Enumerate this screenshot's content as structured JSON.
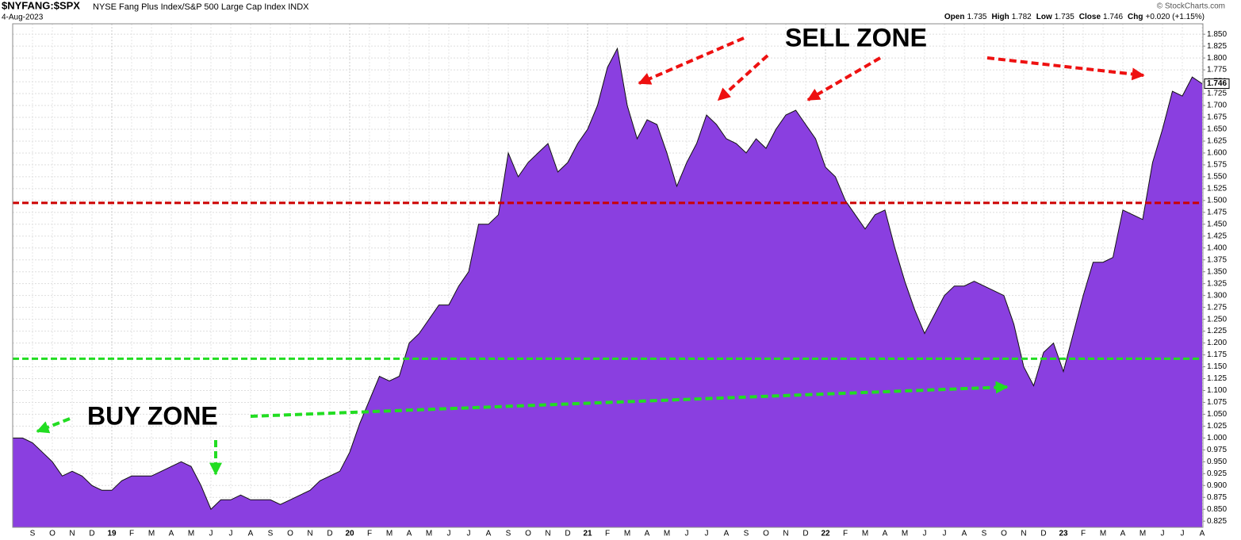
{
  "chart_data": {
    "type": "area",
    "title": "$NYFANG:$SPX",
    "subtitle": "NYSE Fang Plus Index/S&P 500 Large Cap Index  INDX",
    "date": "4-Aug-2023",
    "credit": "© StockCharts.com",
    "quote": [
      [
        "Open",
        "1.735"
      ],
      [
        "High",
        "1.782"
      ],
      [
        "Low",
        "1.735"
      ],
      [
        "Close",
        "1.746"
      ],
      [
        "Chg",
        "+0.020 (+1.15%)"
      ]
    ],
    "annotations": [
      {
        "text": "SELL ZONE",
        "color": "#ee0000"
      },
      {
        "text": "BUY ZONE",
        "color": "#22dd22"
      }
    ],
    "hlines": [
      {
        "value": 1.495,
        "color": "#cc0000"
      },
      {
        "value": 1.167,
        "color": "#22dd22"
      }
    ],
    "categories": [
      null,
      null,
      "S",
      null,
      "O",
      null,
      "N",
      null,
      "D",
      null,
      "19",
      null,
      "F",
      null,
      "M",
      null,
      "A",
      null,
      "M",
      null,
      "J",
      null,
      "J",
      null,
      "A",
      null,
      "S",
      null,
      "O",
      null,
      "N",
      null,
      "D",
      null,
      "20",
      null,
      "F",
      null,
      "M",
      null,
      "A",
      null,
      "M",
      null,
      "J",
      null,
      "J",
      null,
      "A",
      null,
      "S",
      null,
      "O",
      null,
      "N",
      null,
      "D",
      null,
      "21",
      null,
      "F",
      null,
      "M",
      null,
      "A",
      null,
      "M",
      null,
      "J",
      null,
      "J",
      null,
      "A",
      null,
      "S",
      null,
      "O",
      null,
      "N",
      null,
      "D",
      null,
      "22",
      null,
      "F",
      null,
      "M",
      null,
      "A",
      null,
      "M",
      null,
      "J",
      null,
      "J",
      null,
      "A",
      null,
      "S",
      null,
      "O",
      null,
      "N",
      null,
      "D",
      null,
      "23",
      null,
      "F",
      null,
      "M",
      null,
      "A",
      null,
      "M",
      null,
      "J",
      null,
      "J",
      null,
      "A"
    ],
    "values": [
      1.0,
      1.0,
      0.99,
      0.97,
      0.95,
      0.92,
      0.93,
      0.92,
      0.9,
      0.89,
      0.89,
      0.91,
      0.92,
      0.92,
      0.92,
      0.93,
      0.94,
      0.95,
      0.94,
      0.9,
      0.85,
      0.87,
      0.87,
      0.88,
      0.87,
      0.87,
      0.87,
      0.86,
      0.87,
      0.88,
      0.89,
      0.91,
      0.92,
      0.93,
      0.97,
      1.03,
      1.08,
      1.13,
      1.12,
      1.13,
      1.2,
      1.22,
      1.25,
      1.28,
      1.28,
      1.32,
      1.35,
      1.45,
      1.45,
      1.47,
      1.6,
      1.55,
      1.58,
      1.6,
      1.62,
      1.56,
      1.58,
      1.62,
      1.65,
      1.7,
      1.78,
      1.82,
      1.7,
      1.63,
      1.67,
      1.66,
      1.6,
      1.53,
      1.58,
      1.62,
      1.68,
      1.66,
      1.63,
      1.62,
      1.6,
      1.63,
      1.61,
      1.65,
      1.68,
      1.69,
      1.66,
      1.63,
      1.57,
      1.55,
      1.5,
      1.47,
      1.44,
      1.47,
      1.48,
      1.4,
      1.33,
      1.27,
      1.22,
      1.26,
      1.3,
      1.32,
      1.32,
      1.33,
      1.32,
      1.31,
      1.3,
      1.24,
      1.15,
      1.11,
      1.18,
      1.2,
      1.14,
      1.22,
      1.3,
      1.37,
      1.37,
      1.38,
      1.48,
      1.47,
      1.46,
      1.58,
      1.65,
      1.73,
      1.72,
      1.76,
      1.746
    ],
    "last_value_label": "1.746",
    "color": "#8a3fe0",
    "line_color": "#111111",
    "grid": true,
    "ylim": [
      0.812,
      1.872
    ],
    "yticks": [
      0.825,
      {
        "value": 0.85,
        "label": "0.850"
      },
      0.875,
      {
        "value": 0.9,
        "label": "0.900"
      },
      0.925,
      {
        "value": 0.95,
        "label": "0.950"
      },
      0.975,
      {
        "value": 1.0,
        "label": "1.000"
      },
      1.025,
      {
        "value": 1.05,
        "label": "1.050"
      },
      1.075,
      {
        "value": 1.1,
        "label": "1.100"
      },
      1.125,
      {
        "value": 1.15,
        "label": "1.150"
      },
      1.175,
      {
        "value": 1.2,
        "label": "1.200"
      },
      1.225,
      {
        "value": 1.25,
        "label": "1.250"
      },
      1.275,
      {
        "value": 1.3,
        "label": "1.300"
      },
      1.325,
      {
        "value": 1.35,
        "label": "1.350"
      },
      1.375,
      {
        "value": 1.4,
        "label": "1.400"
      },
      1.425,
      {
        "value": 1.45,
        "label": "1.450"
      },
      1.475,
      {
        "value": 1.5,
        "label": "1.500"
      },
      1.525,
      {
        "value": 1.55,
        "label": "1.550"
      },
      1.575,
      {
        "value": 1.6,
        "label": "1.600"
      },
      1.625,
      {
        "value": 1.65,
        "label": "1.650"
      },
      1.675,
      {
        "value": 1.7,
        "label": "1.700"
      },
      1.725,
      {
        "value": 1.75,
        "label": "1.750"
      },
      1.775,
      {
        "value": 1.8,
        "label": "1.800"
      },
      1.825,
      {
        "value": 1.85,
        "label": "1.850"
      }
    ]
  }
}
